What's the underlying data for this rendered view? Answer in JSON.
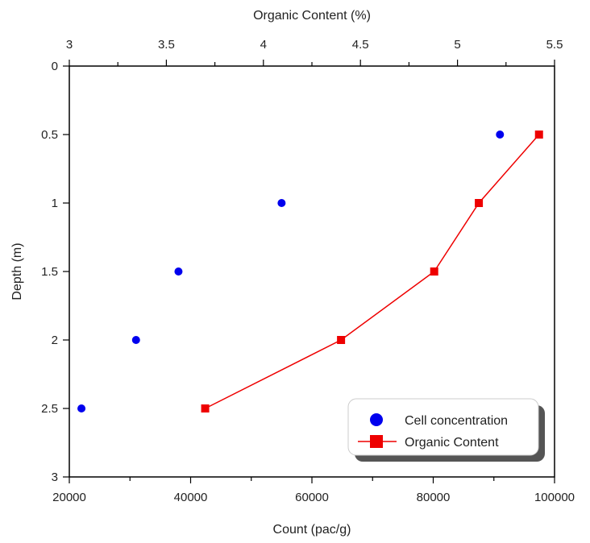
{
  "chart_data": {
    "type": "scatter",
    "title": "",
    "xlabel_bottom": "Count (pac/g)",
    "xlabel_top": "Organic Content (%)",
    "ylabel": "Depth (m)",
    "x_bottom": {
      "min": 20000,
      "max": 100000,
      "ticks": [
        20000,
        40000,
        60000,
        80000,
        100000
      ],
      "minor_step": 10000
    },
    "x_top": {
      "min": 3,
      "max": 5.5,
      "ticks": [
        3,
        3.5,
        4,
        4.5,
        5,
        5.5
      ],
      "tick_labels": [
        "3",
        "3.5",
        "4",
        "4.5",
        "5",
        "5.5"
      ],
      "minor_step": 0.25
    },
    "y": {
      "min": 0,
      "max": 3,
      "reversed": true,
      "ticks": [
        0,
        0.5,
        1,
        1.5,
        2,
        2.5,
        3
      ],
      "tick_labels": [
        "0",
        "0.5",
        "1",
        "1.5",
        "2",
        "2.5",
        "3"
      ]
    },
    "grid": false,
    "legend_position": "bottom-right",
    "series": [
      {
        "name": "Cell concentration",
        "axis": "bottom",
        "marker": "circle",
        "line": false,
        "color": "#0000ee",
        "points": [
          {
            "x": 91000,
            "y": 0.5
          },
          {
            "x": 55000,
            "y": 1.0
          },
          {
            "x": 38000,
            "y": 1.5
          },
          {
            "x": 31000,
            "y": 2.0
          },
          {
            "x": 22000,
            "y": 2.5
          }
        ]
      },
      {
        "name": "Organic Content",
        "axis": "top",
        "marker": "square",
        "line": true,
        "color": "#ee0000",
        "points": [
          {
            "x": 5.42,
            "y": 0.5
          },
          {
            "x": 5.11,
            "y": 1.0
          },
          {
            "x": 4.88,
            "y": 1.5
          },
          {
            "x": 4.4,
            "y": 2.0
          },
          {
            "x": 3.7,
            "y": 2.5
          }
        ]
      }
    ]
  }
}
